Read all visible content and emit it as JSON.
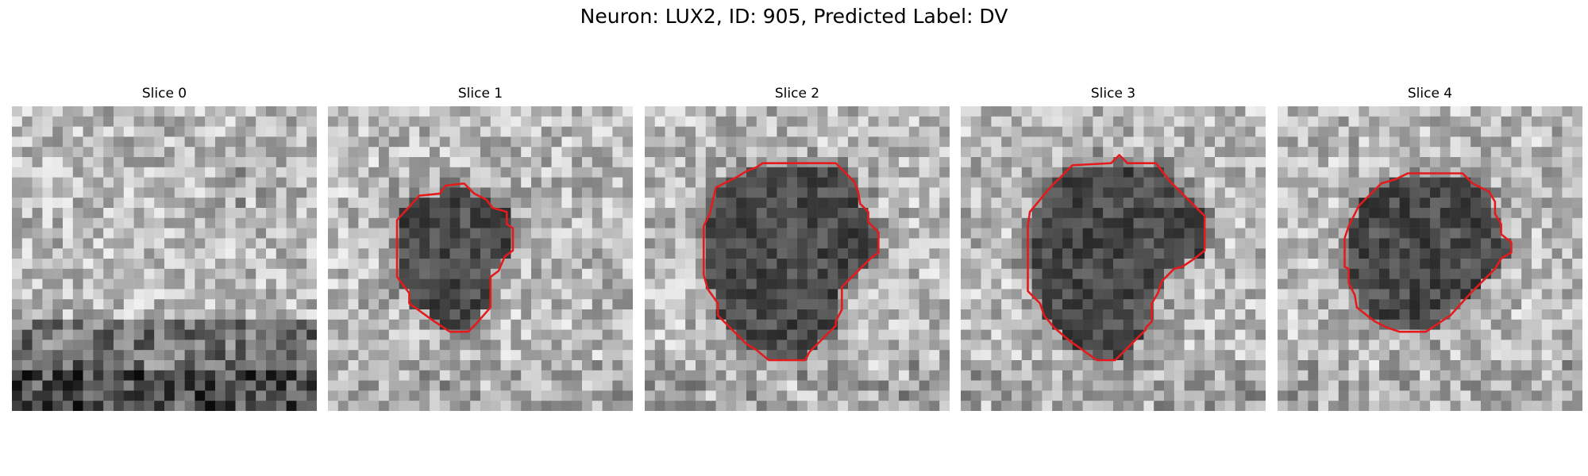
{
  "figure": {
    "title": "Neuron: LUX2, ID: 905, Predicted Label: DV"
  },
  "colors": {
    "contour": "#e41a1c",
    "background": "#ffffff"
  },
  "panels": [
    {
      "title": "Slice 0",
      "image": "grayscale-noise-patch-with-dark-bands-bottom",
      "has_contour": false
    },
    {
      "title": "Slice 1",
      "image": "grayscale-noise-patch-with-dark-blob",
      "has_contour": true
    },
    {
      "title": "Slice 2",
      "image": "grayscale-noise-patch-with-dark-blob",
      "has_contour": true
    },
    {
      "title": "Slice 3",
      "image": "grayscale-noise-patch-with-dark-blob",
      "has_contour": true
    },
    {
      "title": "Slice 4",
      "image": "grayscale-noise-patch-with-dark-blob",
      "has_contour": true
    }
  ]
}
